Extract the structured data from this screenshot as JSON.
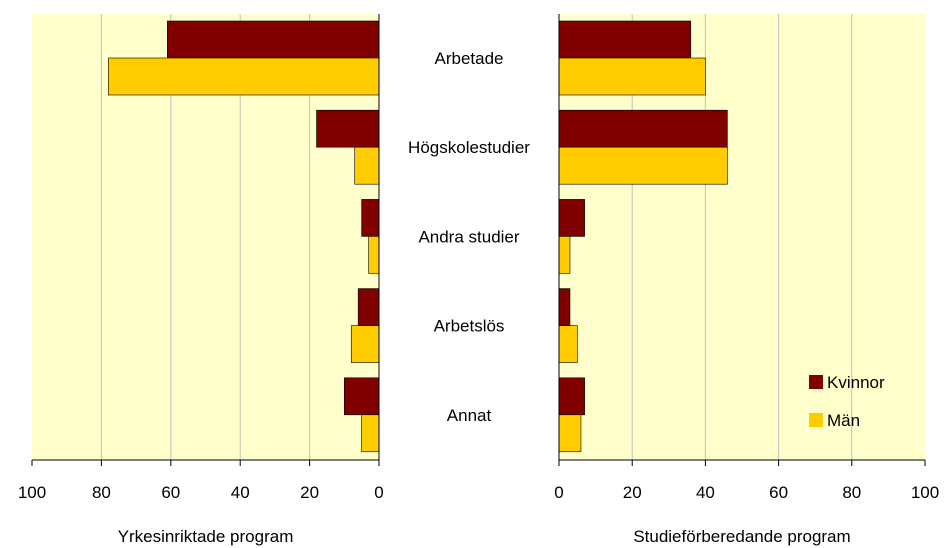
{
  "chart_data": {
    "type": "bar",
    "orientation": "horizontal-butterfly",
    "categories": [
      "Arbetade",
      "Högskolestudier",
      "Andra studier",
      "Arbetslös",
      "Annat"
    ],
    "panels": [
      {
        "xlabel": "Yrkesinriktade program",
        "xlim": [
          100,
          0
        ],
        "ticks": [
          "100",
          "80",
          "60",
          "40",
          "20",
          "0"
        ],
        "series": [
          {
            "name": "Kvinnor",
            "values": [
              61,
              18,
              5,
              6,
              10
            ]
          },
          {
            "name": "Män",
            "values": [
              78,
              7,
              3,
              8,
              5
            ]
          }
        ]
      },
      {
        "xlabel": "Studieförberedande program",
        "xlim": [
          0,
          100
        ],
        "ticks": [
          "0",
          "20",
          "40",
          "60",
          "80",
          "100"
        ],
        "series": [
          {
            "name": "Kvinnor",
            "values": [
              36,
              46,
              7,
              3,
              7
            ]
          },
          {
            "name": "Män",
            "values": [
              40,
              46,
              3,
              5,
              6
            ]
          }
        ]
      }
    ],
    "legend": {
      "placement": "bottom-right-inside",
      "entries": [
        "Kvinnor",
        "Män"
      ]
    },
    "colors": {
      "Kvinnor": "#800000",
      "Män": "#FFCC00",
      "plot_background": "#FFFFCC",
      "grid": "#C0C0C0"
    },
    "grid": true
  }
}
